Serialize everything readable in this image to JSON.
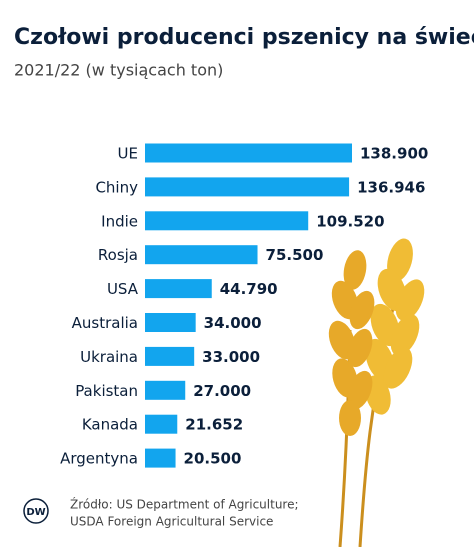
{
  "chart_data": {
    "type": "bar",
    "orientation": "horizontal",
    "title": "Czołowi producenci pszenicy na świecie",
    "subtitle": "2021/22 (w tysiącach ton)",
    "categories": [
      "UE",
      "Chiny",
      "Indie",
      "Rosja",
      "USA",
      "Australia",
      "Ukraina",
      "Pakistan",
      "Kanada",
      "Argentyna"
    ],
    "values": [
      138900,
      136946,
      109520,
      75500,
      44790,
      34000,
      33000,
      27000,
      21652,
      20500
    ],
    "value_labels": [
      "138.900",
      "136.946",
      "109.520",
      "75.500",
      "44.790",
      "34.000",
      "33.000",
      "27.000",
      "21.652",
      "20.500"
    ],
    "color": "#12a5ee",
    "source": [
      "Źródło: US Department of Agriculture;",
      "USDA Foreign Agricultural Service"
    ],
    "logo": "DW"
  }
}
